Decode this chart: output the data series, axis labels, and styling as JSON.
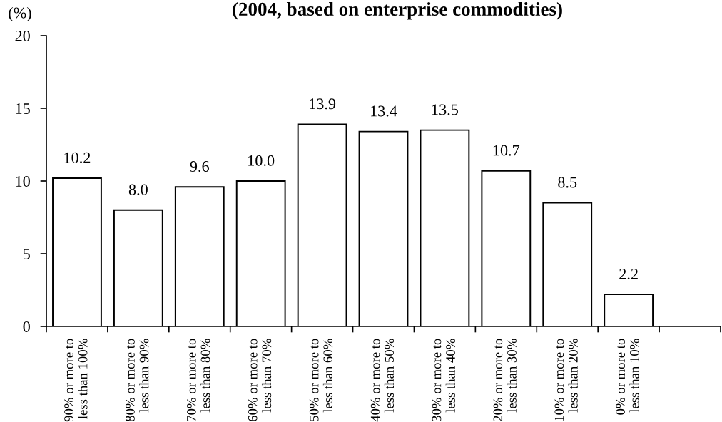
{
  "chart_data": {
    "type": "bar",
    "title": "(2004, based on enterprise commodities)",
    "ylabel": "(%)",
    "categories": [
      "90% or more to\nless than 100%",
      "80% or more to\nless than 90%",
      "70% or more to\nless than 80%",
      "60% or more to\nless than 70%",
      "50% or more to\nless than 60%",
      "40% or more to\nless than 50%",
      "30% or more to\nless than 40%",
      "20% or more to\nless than 30%",
      "10% or more to\nless than 20%",
      "0% or more to\nless than 10%",
      null
    ],
    "values": [
      10.2,
      8.0,
      9.6,
      10.0,
      13.9,
      13.4,
      13.5,
      10.7,
      8.5,
      2.2,
      null
    ],
    "value_labels": [
      "10.2",
      "8.0",
      "9.6",
      "10.0",
      "13.9",
      "13.4",
      "13.5",
      "10.7",
      "8.5",
      "2.2",
      null
    ],
    "color": "#ffffff",
    "ylim": [
      0,
      20
    ],
    "yticks": [
      0,
      5,
      10,
      15,
      20
    ],
    "grid": false
  }
}
